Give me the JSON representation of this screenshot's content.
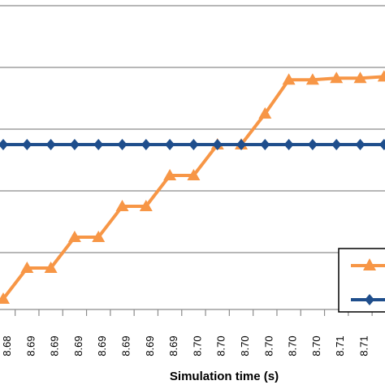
{
  "chart_data": {
    "type": "line",
    "xlabel": "Simulation time (s)",
    "x_tick_labels": [
      "8.68",
      "8.69",
      "8.69",
      "8.69",
      "8.69",
      "8.69",
      "8.69",
      "8.69",
      "8.70",
      "8.70",
      "8.70",
      "8.70",
      "8.70",
      "8.70",
      "8.71",
      "8.71"
    ],
    "grid": true,
    "legend_placement": "bottom-right",
    "series": [
      {
        "color": "#F79646",
        "marker": "triangle",
        "values": [
          0.5,
          1.5,
          1.5,
          2.5,
          2.5,
          3.5,
          3.5,
          4.5,
          4.5,
          5.5,
          5.5,
          6.5,
          7.6,
          7.6,
          7.65,
          7.65,
          7.7,
          7.7
        ]
      },
      {
        "color": "#1F4E8C",
        "marker": "diamond",
        "values": [
          5.5,
          5.5,
          5.5,
          5.5,
          5.5,
          5.5,
          5.5,
          5.5,
          5.5,
          5.5,
          5.5,
          5.5,
          5.5,
          5.5,
          5.5,
          5.5,
          5.5,
          5.5
        ]
      }
    ]
  }
}
